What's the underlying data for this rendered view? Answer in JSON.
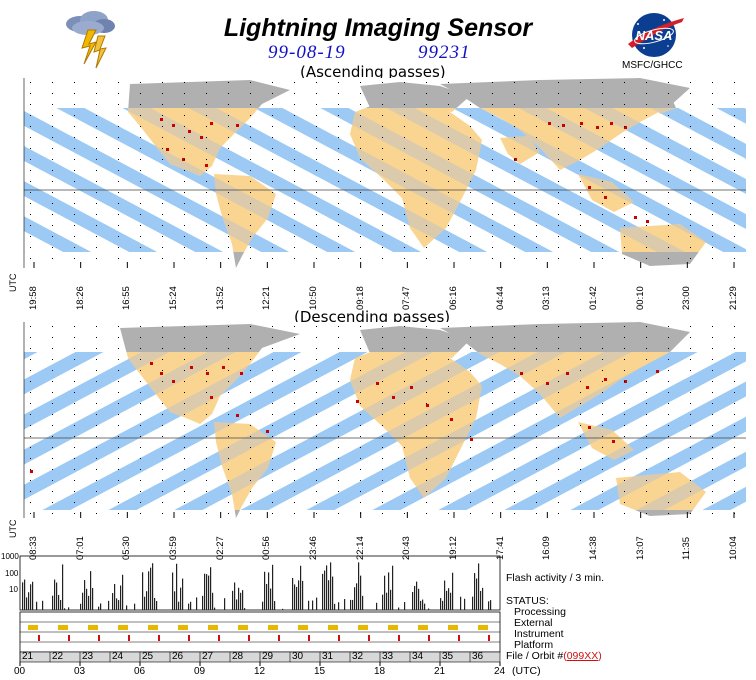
{
  "header": {
    "title": "Lightning Imaging Sensor",
    "date": "99-08-19",
    "day_number": "99231",
    "nasa_org": "MSFC/GHCC",
    "ascending_label": "(Ascending passes)",
    "descending_label": "(Descending passes)"
  },
  "maps": {
    "utc_label": "UTC",
    "ascending_ticks": [
      "19:58",
      "18:26",
      "16:55",
      "15:24",
      "13:52",
      "12:21",
      "10:50",
      "09:18",
      "07:47",
      "06:16",
      "04:44",
      "03:13",
      "01:42",
      "00:10",
      "23:00",
      "21:29"
    ],
    "descending_ticks": [
      "08:33",
      "07:01",
      "05:30",
      "03:59",
      "02:27",
      "00:56",
      "23:46",
      "22:14",
      "20:43",
      "19:12",
      "17:41",
      "16:09",
      "14:38",
      "13:07",
      "11:35",
      "10:04"
    ],
    "colors": {
      "ocean": "#ffffff",
      "land": "#b0b0b0",
      "swath": "#9ccaf4",
      "land_swath": "#f9d591",
      "flash": "#cc0000"
    }
  },
  "chart_data": {
    "type": "bar",
    "title": "",
    "flash_activity_label": "Flash activity / 3 min.",
    "y_ticks": [
      "1000",
      "100",
      "10"
    ],
    "y_scale": "log",
    "status_label": "STATUS:",
    "status_rows": [
      "Processing",
      "External",
      "Instrument",
      "Platform"
    ],
    "file_orbit_label": "File / Orbit #",
    "file_orbit_code_open": "(",
    "file_orbit_code": "099XX",
    "file_orbit_code_close": ")",
    "orbit_numbers": [
      "21",
      "22",
      "23",
      "24",
      "25",
      "26",
      "27",
      "28",
      "29",
      "30",
      "31",
      "32",
      "33",
      "34",
      "35",
      "36"
    ],
    "x_ticks": [
      "00",
      "03",
      "06",
      "09",
      "12",
      "15",
      "18",
      "21",
      "24"
    ],
    "x_unit": "(UTC)",
    "xlim": [
      0,
      24
    ]
  }
}
